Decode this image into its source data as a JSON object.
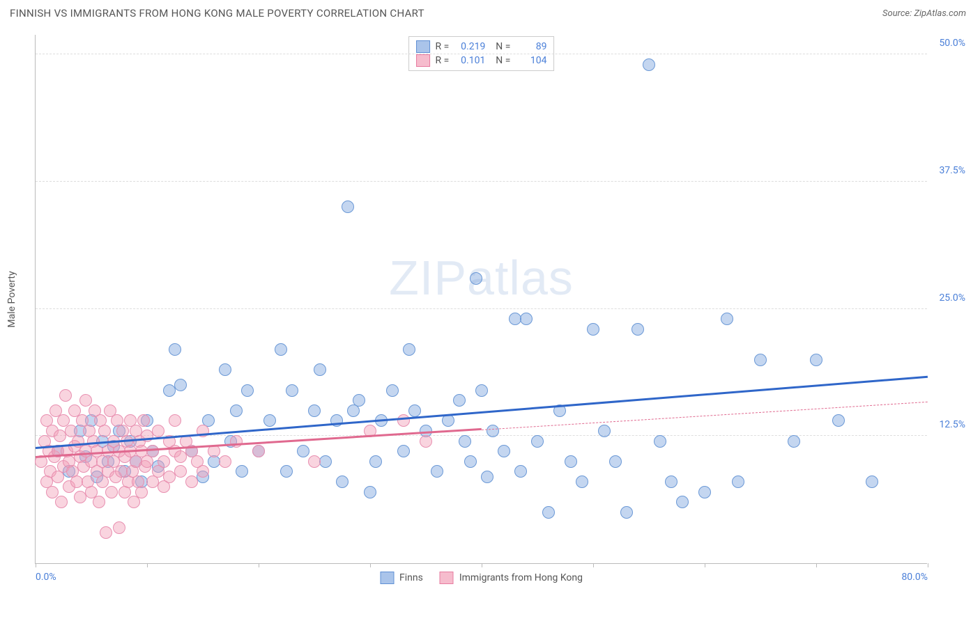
{
  "header": {
    "title": "FINNISH VS IMMIGRANTS FROM HONG KONG MALE POVERTY CORRELATION CHART",
    "source_prefix": "Source: ",
    "source_name": "ZipAtlas.com"
  },
  "axes": {
    "y_title": "Male Poverty",
    "xlim": [
      0,
      80
    ],
    "ylim": [
      0,
      52
    ],
    "x_ticks": [
      0,
      10,
      20,
      30,
      40,
      50,
      60,
      70,
      80
    ],
    "x_tick_labels": {
      "0": "0.0%",
      "80": "80.0%"
    },
    "y_ticks": [
      12.5,
      25.0,
      37.5,
      50.0
    ],
    "y_tick_labels": [
      "12.5%",
      "25.0%",
      "37.5%",
      "50.0%"
    ]
  },
  "watermark": {
    "zip": "ZIP",
    "atlas": "atlas"
  },
  "series": [
    {
      "id": "finns",
      "label": "Finns",
      "fill": "rgba(124, 165, 221, 0.45)",
      "stroke": "#6a98d6",
      "swatch_fill": "#aac4ea",
      "swatch_stroke": "#5f8fd4",
      "radius": 9,
      "R": "0.219",
      "N": "89",
      "trend": {
        "x0": 0,
        "y0": 11.2,
        "x1": 80,
        "y1": 18.2,
        "color": "#2f66c9",
        "solid_until_x": 80
      },
      "points": [
        [
          2,
          11
        ],
        [
          3,
          9
        ],
        [
          4,
          13
        ],
        [
          4.5,
          10.5
        ],
        [
          5,
          14
        ],
        [
          5.5,
          8.5
        ],
        [
          6,
          12
        ],
        [
          6.5,
          10
        ],
        [
          7,
          11.5
        ],
        [
          7.5,
          13
        ],
        [
          8,
          9
        ],
        [
          8.5,
          12
        ],
        [
          9,
          10
        ],
        [
          9.5,
          8
        ],
        [
          10,
          14
        ],
        [
          10.5,
          11
        ],
        [
          11,
          9.5
        ],
        [
          12,
          17
        ],
        [
          12.5,
          21
        ],
        [
          13,
          17.5
        ],
        [
          14,
          11
        ],
        [
          15,
          8.5
        ],
        [
          15.5,
          14
        ],
        [
          16,
          10
        ],
        [
          17,
          19
        ],
        [
          17.5,
          12
        ],
        [
          18,
          15
        ],
        [
          18.5,
          9
        ],
        [
          19,
          17
        ],
        [
          20,
          11
        ],
        [
          21,
          14
        ],
        [
          22,
          21
        ],
        [
          22.5,
          9
        ],
        [
          23,
          17
        ],
        [
          24,
          11
        ],
        [
          25,
          15
        ],
        [
          25.5,
          19
        ],
        [
          26,
          10
        ],
        [
          27,
          14
        ],
        [
          27.5,
          8
        ],
        [
          28,
          35
        ],
        [
          28.5,
          15
        ],
        [
          29,
          16
        ],
        [
          30,
          7
        ],
        [
          30.5,
          10
        ],
        [
          31,
          14
        ],
        [
          32,
          17
        ],
        [
          33,
          11
        ],
        [
          33.5,
          21
        ],
        [
          34,
          15
        ],
        [
          35,
          13
        ],
        [
          36,
          9
        ],
        [
          37,
          14
        ],
        [
          38,
          16
        ],
        [
          38.5,
          12
        ],
        [
          39,
          10
        ],
        [
          39.5,
          28
        ],
        [
          40,
          17
        ],
        [
          40.5,
          8.5
        ],
        [
          41,
          13
        ],
        [
          42,
          11
        ],
        [
          43,
          24
        ],
        [
          43.5,
          9
        ],
        [
          44,
          24
        ],
        [
          45,
          12
        ],
        [
          46,
          5
        ],
        [
          47,
          15
        ],
        [
          48,
          10
        ],
        [
          49,
          8
        ],
        [
          50,
          23
        ],
        [
          51,
          13
        ],
        [
          52,
          10
        ],
        [
          53,
          5
        ],
        [
          54,
          23
        ],
        [
          55,
          49
        ],
        [
          56,
          12
        ],
        [
          57,
          8
        ],
        [
          58,
          6
        ],
        [
          60,
          7
        ],
        [
          62,
          24
        ],
        [
          63,
          8
        ],
        [
          65,
          20
        ],
        [
          68,
          12
        ],
        [
          70,
          20
        ],
        [
          72,
          14
        ],
        [
          75,
          8
        ]
      ]
    },
    {
      "id": "hk",
      "label": "Immigrants from Hong Kong",
      "fill": "rgba(242, 160, 185, 0.45)",
      "stroke": "#e88fb0",
      "swatch_fill": "#f6bccd",
      "swatch_stroke": "#e77ba0",
      "radius": 9,
      "R": "0.101",
      "N": "104",
      "trend": {
        "x0": 0,
        "y0": 10.3,
        "x1": 80,
        "y1": 15.8,
        "color": "#e0698f",
        "solid_until_x": 40
      },
      "points": [
        [
          0.5,
          10
        ],
        [
          0.8,
          12
        ],
        [
          1,
          8
        ],
        [
          1,
          14
        ],
        [
          1.2,
          11
        ],
        [
          1.3,
          9
        ],
        [
          1.5,
          13
        ],
        [
          1.5,
          7
        ],
        [
          1.7,
          10.5
        ],
        [
          1.8,
          15
        ],
        [
          2,
          11
        ],
        [
          2,
          8.5
        ],
        [
          2.2,
          12.5
        ],
        [
          2.3,
          6
        ],
        [
          2.5,
          14
        ],
        [
          2.5,
          9.5
        ],
        [
          2.7,
          16.5
        ],
        [
          2.8,
          11
        ],
        [
          3,
          10
        ],
        [
          3,
          7.5
        ],
        [
          3.2,
          13
        ],
        [
          3.3,
          9
        ],
        [
          3.5,
          11.5
        ],
        [
          3.5,
          15
        ],
        [
          3.7,
          8
        ],
        [
          3.8,
          12
        ],
        [
          4,
          10.5
        ],
        [
          4,
          6.5
        ],
        [
          4.2,
          14
        ],
        [
          4.3,
          9.5
        ],
        [
          4.5,
          11
        ],
        [
          4.5,
          16
        ],
        [
          4.7,
          8
        ],
        [
          4.8,
          13
        ],
        [
          5,
          10
        ],
        [
          5,
          7
        ],
        [
          5.2,
          12
        ],
        [
          5.3,
          15
        ],
        [
          5.5,
          9
        ],
        [
          5.5,
          11
        ],
        [
          5.7,
          6
        ],
        [
          5.8,
          14
        ],
        [
          6,
          10
        ],
        [
          6,
          8
        ],
        [
          6.2,
          13
        ],
        [
          6.3,
          3
        ],
        [
          6.5,
          11
        ],
        [
          6.5,
          9
        ],
        [
          6.7,
          15
        ],
        [
          6.8,
          7
        ],
        [
          7,
          12
        ],
        [
          7,
          10
        ],
        [
          7.2,
          8.5
        ],
        [
          7.3,
          14
        ],
        [
          7.5,
          11
        ],
        [
          7.5,
          3.5
        ],
        [
          7.7,
          9
        ],
        [
          7.8,
          13
        ],
        [
          8,
          10.5
        ],
        [
          8,
          7
        ],
        [
          8.2,
          12
        ],
        [
          8.3,
          8
        ],
        [
          8.5,
          11
        ],
        [
          8.5,
          14
        ],
        [
          8.7,
          9
        ],
        [
          8.8,
          6
        ],
        [
          9,
          13
        ],
        [
          9,
          10
        ],
        [
          9.2,
          8
        ],
        [
          9.3,
          12
        ],
        [
          9.5,
          11
        ],
        [
          9.5,
          7
        ],
        [
          9.7,
          14
        ],
        [
          9.8,
          9.5
        ],
        [
          10,
          10
        ],
        [
          10,
          12.5
        ],
        [
          10.5,
          8
        ],
        [
          10.5,
          11
        ],
        [
          11,
          9
        ],
        [
          11,
          13
        ],
        [
          11.5,
          10
        ],
        [
          11.5,
          7.5
        ],
        [
          12,
          12
        ],
        [
          12,
          8.5
        ],
        [
          12.5,
          11
        ],
        [
          12.5,
          14
        ],
        [
          13,
          9
        ],
        [
          13,
          10.5
        ],
        [
          13.5,
          12
        ],
        [
          14,
          8
        ],
        [
          14,
          11
        ],
        [
          14.5,
          10
        ],
        [
          15,
          13
        ],
        [
          15,
          9
        ],
        [
          16,
          11
        ],
        [
          17,
          10
        ],
        [
          18,
          12
        ],
        [
          20,
          11
        ],
        [
          25,
          10
        ],
        [
          30,
          13
        ],
        [
          33,
          14
        ],
        [
          35,
          12
        ]
      ]
    }
  ],
  "colors": {
    "axis_label": "#4a7fd8",
    "grid": "#dddddd",
    "axis_line": "#bbbbbb",
    "text": "#555555"
  }
}
